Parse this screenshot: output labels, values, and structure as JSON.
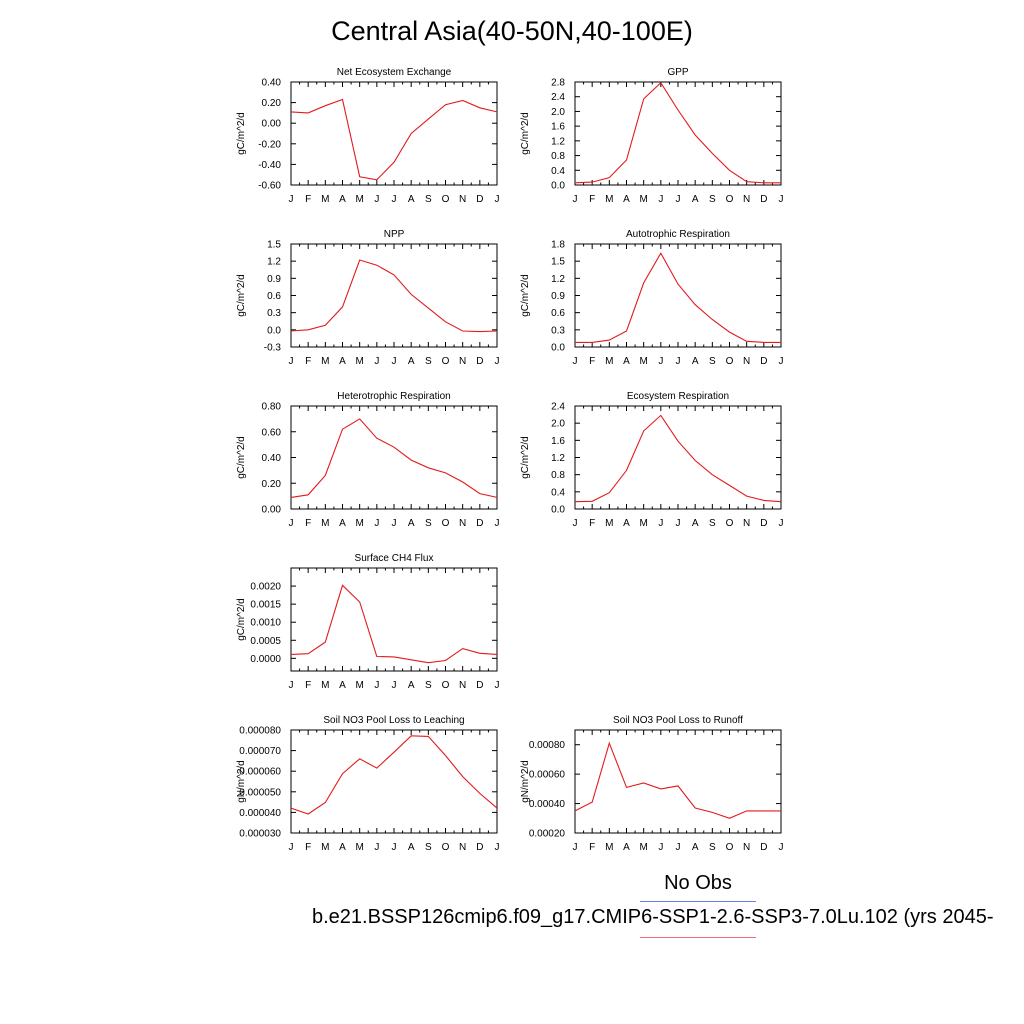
{
  "title": "Central Asia(40-50N,40-100E)",
  "legend": {
    "obs_label": "No Obs",
    "run_label": "b.e21.BSSP126cmip6.f09_g17.CMIP6-SSP1-2.6-SSP3-7.0Lu.102 (yrs 2045-",
    "obs_color": "#6b7be8",
    "run_color": "#f06b6b"
  },
  "chart_data": [
    {
      "type": "line",
      "title": "Net Ecosystem Exchange",
      "ylabel": "gC/m^2/d",
      "x": [
        "J",
        "F",
        "M",
        "A",
        "M",
        "J",
        "J",
        "A",
        "S",
        "O",
        "N",
        "D",
        "J"
      ],
      "ylim": [
        -0.6,
        0.4
      ],
      "yticks": [
        "0.40",
        "0.20",
        "0.00",
        "-0.20",
        "-0.40",
        "-0.60"
      ],
      "series": [
        {
          "values": [
            0.11,
            0.1,
            0.17,
            0.23,
            -0.52,
            -0.55,
            -0.38,
            -0.1,
            0.04,
            0.18,
            0.22,
            0.15,
            0.11
          ],
          "color": "#e31a1c"
        }
      ]
    },
    {
      "type": "line",
      "title": "GPP",
      "ylabel": "gC/m^2/d",
      "x": [
        "J",
        "F",
        "M",
        "A",
        "M",
        "J",
        "J",
        "A",
        "S",
        "O",
        "N",
        "D",
        "J"
      ],
      "ylim": [
        0.0,
        2.8
      ],
      "yticks": [
        "2.8",
        "2.4",
        "2.0",
        "1.6",
        "1.2",
        "0.8",
        "0.4",
        "0.0"
      ],
      "series": [
        {
          "values": [
            0.06,
            0.08,
            0.2,
            0.68,
            2.34,
            2.78,
            2.04,
            1.36,
            0.86,
            0.4,
            0.09,
            0.06,
            0.06
          ],
          "color": "#e31a1c"
        }
      ]
    },
    {
      "type": "line",
      "title": "NPP",
      "ylabel": "gC/m^2/d",
      "x": [
        "J",
        "F",
        "M",
        "A",
        "M",
        "J",
        "J",
        "A",
        "S",
        "O",
        "N",
        "D",
        "J"
      ],
      "ylim": [
        -0.3,
        1.5
      ],
      "yticks": [
        "1.5",
        "1.2",
        "0.9",
        "0.6",
        "0.3",
        "0.0",
        "-0.3"
      ],
      "series": [
        {
          "values": [
            -0.02,
            0.0,
            0.08,
            0.4,
            1.22,
            1.13,
            0.96,
            0.62,
            0.38,
            0.14,
            -0.02,
            -0.03,
            -0.02
          ],
          "color": "#e31a1c"
        }
      ]
    },
    {
      "type": "line",
      "title": "Autotrophic Respiration",
      "ylabel": "gC/m^2/d",
      "x": [
        "J",
        "F",
        "M",
        "A",
        "M",
        "J",
        "J",
        "A",
        "S",
        "O",
        "N",
        "D",
        "J"
      ],
      "ylim": [
        0.0,
        1.8
      ],
      "yticks": [
        "1.8",
        "1.5",
        "1.2",
        "0.9",
        "0.6",
        "0.3",
        "0.0"
      ],
      "series": [
        {
          "values": [
            0.08,
            0.08,
            0.12,
            0.28,
            1.12,
            1.64,
            1.1,
            0.74,
            0.48,
            0.26,
            0.1,
            0.08,
            0.08
          ],
          "color": "#e31a1c"
        }
      ]
    },
    {
      "type": "line",
      "title": "Heterotrophic Respiration",
      "ylabel": "gC/m^2/d",
      "x": [
        "J",
        "F",
        "M",
        "A",
        "M",
        "J",
        "J",
        "A",
        "S",
        "O",
        "N",
        "D",
        "J"
      ],
      "ylim": [
        0.0,
        0.8
      ],
      "yticks": [
        "0.80",
        "0.60",
        "0.40",
        "0.20",
        "0.00"
      ],
      "series": [
        {
          "values": [
            0.09,
            0.11,
            0.26,
            0.62,
            0.7,
            0.55,
            0.48,
            0.38,
            0.32,
            0.28,
            0.21,
            0.12,
            0.09
          ],
          "color": "#e31a1c"
        }
      ]
    },
    {
      "type": "line",
      "title": "Ecosystem Respiration",
      "ylabel": "gC/m^2/d",
      "x": [
        "J",
        "F",
        "M",
        "A",
        "M",
        "J",
        "J",
        "A",
        "S",
        "O",
        "N",
        "D",
        "J"
      ],
      "ylim": [
        0.0,
        2.4
      ],
      "yticks": [
        "2.4",
        "2.0",
        "1.6",
        "1.2",
        "0.8",
        "0.4",
        "0.0"
      ],
      "series": [
        {
          "values": [
            0.17,
            0.18,
            0.38,
            0.9,
            1.82,
            2.18,
            1.58,
            1.13,
            0.8,
            0.55,
            0.3,
            0.2,
            0.17
          ],
          "color": "#e31a1c"
        }
      ]
    },
    {
      "type": "line",
      "title": "Surface CH4 Flux",
      "ylabel": "gC/m^2/d",
      "x": [
        "J",
        "F",
        "M",
        "A",
        "M",
        "J",
        "J",
        "A",
        "S",
        "O",
        "N",
        "D",
        "J"
      ],
      "ylim": [
        -0.00035,
        0.0025
      ],
      "yticks": [
        "0.0020",
        "0.0015",
        "0.0010",
        "0.0005",
        "0.0000"
      ],
      "series": [
        {
          "values": [
            0.00011,
            0.00013,
            0.00045,
            0.00202,
            0.00156,
            5e-05,
            4e-05,
            -4e-05,
            -0.00012,
            -6e-05,
            0.00027,
            0.00014,
            0.00011
          ],
          "color": "#e31a1c"
        }
      ]
    },
    {
      "type": "line",
      "title": "Soil NO3 Pool Loss to Leaching",
      "ylabel": "gN/m^2/d",
      "x": [
        "J",
        "F",
        "M",
        "A",
        "M",
        "J",
        "J",
        "A",
        "S",
        "O",
        "N",
        "D",
        "J"
      ],
      "ylim": [
        3e-05,
        8e-05
      ],
      "yticks": [
        "0.000080",
        "0.000070",
        "0.000060",
        "0.000050",
        "0.000040",
        "0.000030"
      ],
      "series": [
        {
          "values": [
            4.21e-05,
            3.92e-05,
            4.48e-05,
            5.88e-05,
            6.6e-05,
            6.15e-05,
            6.92e-05,
            7.72e-05,
            7.69e-05,
            6.76e-05,
            5.74e-05,
            4.92e-05,
            4.21e-05
          ],
          "color": "#e31a1c"
        }
      ]
    },
    {
      "type": "line",
      "title": "Soil NO3 Pool Loss to Runoff",
      "ylabel": "gN/m^2/d",
      "x": [
        "J",
        "F",
        "M",
        "A",
        "M",
        "J",
        "J",
        "A",
        "S",
        "O",
        "N",
        "D",
        "J"
      ],
      "ylim": [
        0.0002,
        0.0009
      ],
      "yticks": [
        "0.00080",
        "0.00060",
        "0.00040",
        "0.00020"
      ],
      "series": [
        {
          "values": [
            0.00035,
            0.00041,
            0.00081,
            0.00051,
            0.00054,
            0.0005,
            0.00052,
            0.00037,
            0.00034,
            0.0003,
            0.00035,
            0.00035,
            0.00035
          ],
          "color": "#e31a1c"
        }
      ]
    }
  ]
}
